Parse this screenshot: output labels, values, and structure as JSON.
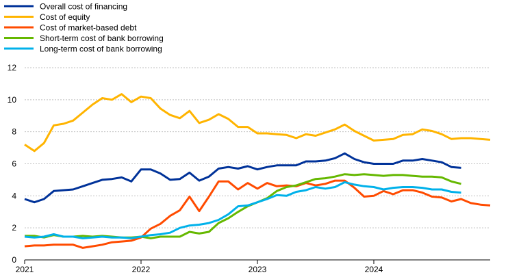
{
  "chart_data": {
    "type": "line",
    "title": "",
    "xlabel": "",
    "ylabel": "",
    "x_ticks": [
      "2021",
      "2022",
      "2023",
      "2024"
    ],
    "x_tick_values": [
      0,
      12,
      24,
      36
    ],
    "xlim": [
      0,
      48
    ],
    "ylim": [
      0,
      12
    ],
    "y_ticks": [
      "0",
      "2",
      "4",
      "6",
      "8",
      "10",
      "12"
    ],
    "y_tick_values": [
      0,
      2,
      4,
      6,
      8,
      10,
      12
    ],
    "grid": "horizontal dashed",
    "legend_position": "top-left",
    "series": [
      {
        "name": "Overall cost of financing",
        "color": "#003299",
        "x": [
          0,
          1,
          2,
          3,
          4,
          5,
          6,
          7,
          8,
          9,
          10,
          11,
          12,
          13,
          14,
          15,
          16,
          17,
          18,
          19,
          20,
          21,
          22,
          23,
          24,
          25,
          26,
          27,
          28,
          29,
          30,
          31,
          32,
          33,
          34,
          35,
          36,
          37,
          38,
          39,
          40,
          41,
          42,
          43,
          44,
          45
        ],
        "values": [
          3.8,
          3.6,
          3.8,
          4.3,
          4.35,
          4.4,
          4.6,
          4.8,
          5.0,
          5.05,
          5.15,
          4.9,
          5.65,
          5.65,
          5.4,
          5.0,
          5.05,
          5.45,
          4.95,
          5.2,
          5.7,
          5.8,
          5.7,
          5.85,
          5.65,
          5.8,
          5.9,
          5.9,
          5.9,
          6.15,
          6.15,
          6.2,
          6.35,
          6.65,
          6.3,
          6.1,
          6.0,
          6.0,
          6.0,
          6.2,
          6.2,
          6.3,
          6.2,
          6.1,
          5.8,
          5.75
        ]
      },
      {
        "name": "Cost of equity",
        "color": "#FFB400",
        "x": [
          0,
          1,
          2,
          3,
          4,
          5,
          6,
          7,
          8,
          9,
          10,
          11,
          12,
          13,
          14,
          15,
          16,
          17,
          18,
          19,
          20,
          21,
          22,
          23,
          24,
          25,
          26,
          27,
          28,
          29,
          30,
          31,
          32,
          33,
          34,
          35,
          36,
          37,
          38,
          39,
          40,
          41,
          42,
          43,
          44,
          45,
          46,
          47,
          48
        ],
        "values": [
          7.2,
          6.8,
          7.3,
          8.4,
          8.5,
          8.7,
          9.2,
          9.7,
          10.1,
          10.0,
          10.35,
          9.85,
          10.2,
          10.1,
          9.45,
          9.05,
          8.85,
          9.3,
          8.55,
          8.75,
          9.1,
          8.8,
          8.3,
          8.3,
          7.9,
          7.9,
          7.85,
          7.8,
          7.6,
          7.85,
          7.75,
          7.95,
          8.15,
          8.45,
          8.05,
          7.75,
          7.45,
          7.5,
          7.55,
          7.8,
          7.85,
          8.15,
          8.05,
          7.85,
          7.55,
          7.6,
          7.6,
          7.55,
          7.5
        ]
      },
      {
        "name": "Cost of market-based debt",
        "color": "#FF4B00",
        "x": [
          0,
          1,
          2,
          3,
          4,
          5,
          6,
          7,
          8,
          9,
          10,
          11,
          12,
          13,
          14,
          15,
          16,
          17,
          18,
          19,
          20,
          21,
          22,
          23,
          24,
          25,
          26,
          27,
          28,
          29,
          30,
          31,
          32,
          33,
          34,
          35,
          36,
          37,
          38,
          39,
          40,
          41,
          42,
          43,
          44,
          45,
          46,
          47,
          48
        ],
        "values": [
          0.85,
          0.9,
          0.9,
          0.95,
          0.95,
          0.95,
          0.75,
          0.85,
          0.95,
          1.1,
          1.15,
          1.2,
          1.4,
          1.95,
          2.25,
          2.75,
          3.1,
          3.95,
          3.05,
          3.95,
          4.9,
          4.9,
          4.4,
          4.8,
          4.45,
          4.8,
          4.6,
          4.65,
          4.6,
          4.8,
          4.65,
          4.75,
          4.95,
          4.95,
          4.5,
          3.95,
          4.0,
          4.3,
          4.1,
          4.35,
          4.35,
          4.2,
          3.95,
          3.9,
          3.65,
          3.8,
          3.55,
          3.45,
          3.4
        ]
      },
      {
        "name": "Short-term cost of bank borrowing",
        "color": "#65B800",
        "x": [
          0,
          1,
          2,
          3,
          4,
          5,
          6,
          7,
          8,
          9,
          10,
          11,
          12,
          13,
          14,
          15,
          16,
          17,
          18,
          19,
          20,
          21,
          22,
          23,
          24,
          25,
          26,
          27,
          28,
          29,
          30,
          31,
          32,
          33,
          34,
          35,
          36,
          37,
          38,
          39,
          40,
          41,
          42,
          43,
          44,
          45
        ],
        "values": [
          1.5,
          1.5,
          1.4,
          1.55,
          1.45,
          1.45,
          1.5,
          1.45,
          1.5,
          1.45,
          1.4,
          1.4,
          1.45,
          1.35,
          1.45,
          1.45,
          1.45,
          1.75,
          1.65,
          1.75,
          2.3,
          2.6,
          3.0,
          3.35,
          3.6,
          3.85,
          4.3,
          4.55,
          4.65,
          4.85,
          5.05,
          5.1,
          5.2,
          5.35,
          5.3,
          5.35,
          5.3,
          5.25,
          5.3,
          5.3,
          5.25,
          5.2,
          5.2,
          5.15,
          4.9,
          4.75
        ]
      },
      {
        "name": "Long-term cost of bank borrowing",
        "color": "#00B1EA",
        "x": [
          0,
          1,
          2,
          3,
          4,
          5,
          6,
          7,
          8,
          9,
          10,
          11,
          12,
          13,
          14,
          15,
          16,
          17,
          18,
          19,
          20,
          21,
          22,
          23,
          24,
          25,
          26,
          27,
          28,
          29,
          30,
          31,
          32,
          33,
          34,
          35,
          36,
          37,
          38,
          39,
          40,
          41,
          42,
          43,
          44,
          45
        ],
        "values": [
          1.45,
          1.4,
          1.45,
          1.6,
          1.45,
          1.45,
          1.35,
          1.4,
          1.45,
          1.4,
          1.4,
          1.35,
          1.45,
          1.55,
          1.6,
          1.7,
          2.0,
          2.15,
          2.2,
          2.3,
          2.5,
          2.85,
          3.35,
          3.4,
          3.6,
          3.8,
          4.05,
          4.0,
          4.25,
          4.35,
          4.55,
          4.45,
          4.55,
          4.85,
          4.7,
          4.6,
          4.55,
          4.4,
          4.5,
          4.55,
          4.55,
          4.5,
          4.4,
          4.4,
          4.25,
          4.2
        ]
      }
    ]
  }
}
